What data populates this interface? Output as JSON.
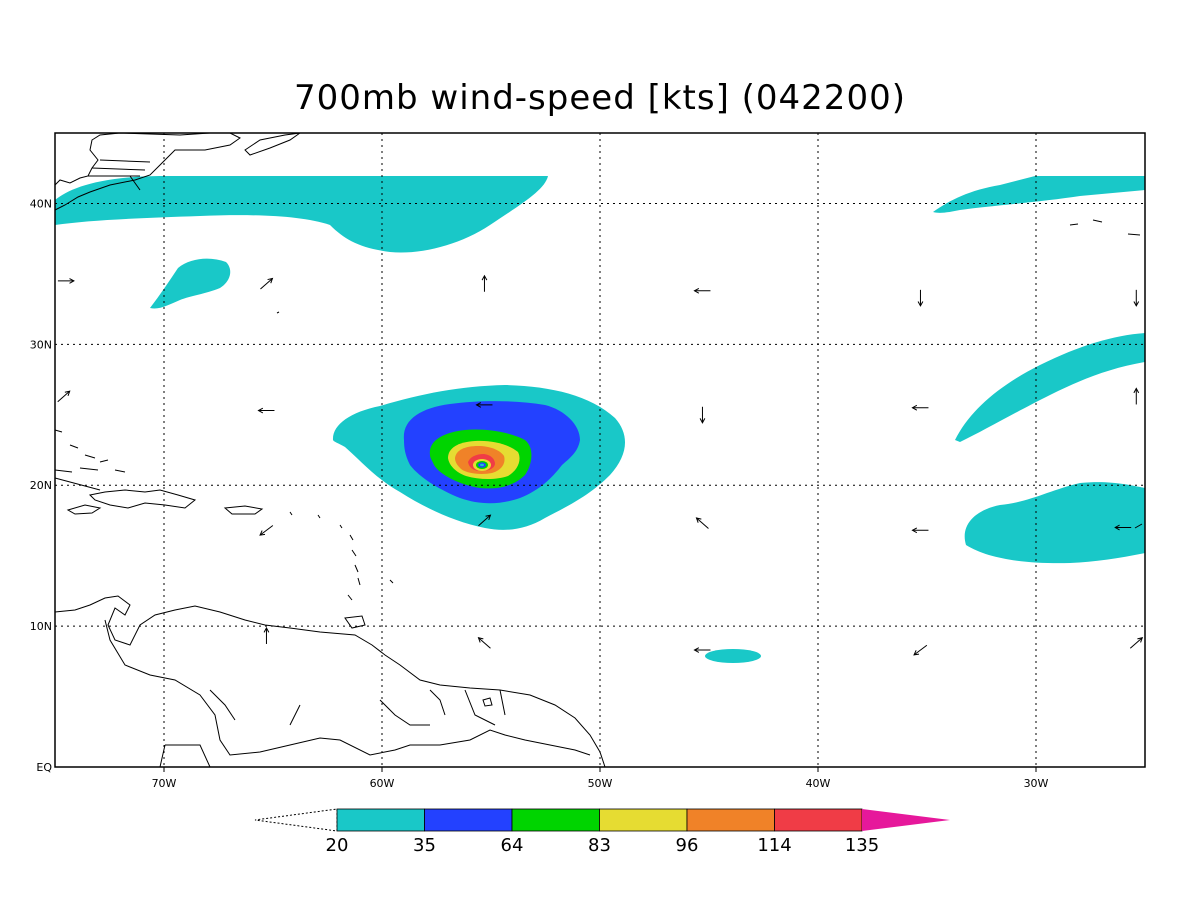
{
  "title": "700mb wind-speed [kts] (042200)",
  "map": {
    "lon_range": [
      -75,
      -25
    ],
    "lat_range": [
      0,
      45
    ],
    "lon_ticks": [
      {
        "value": -70,
        "label": "70W"
      },
      {
        "value": -60,
        "label": "60W"
      },
      {
        "value": -50,
        "label": "50W"
      },
      {
        "value": -40,
        "label": "40W"
      },
      {
        "value": -30,
        "label": "30W"
      }
    ],
    "lat_ticks": [
      {
        "value": 0,
        "label": "EQ"
      },
      {
        "value": 10,
        "label": "10N"
      },
      {
        "value": 20,
        "label": "20N"
      },
      {
        "value": 30,
        "label": "30N"
      },
      {
        "value": 40,
        "label": "40N"
      }
    ],
    "gridlines": "dotted"
  },
  "colorbar": {
    "levels": [
      "20",
      "35",
      "64",
      "83",
      "96",
      "114",
      "135"
    ],
    "colors": [
      "#19c8c8",
      "#2341ff",
      "#00d400",
      "#e6dc32",
      "#f08228",
      "#f03c46",
      "#e6189b"
    ],
    "below_color": "#ffffff"
  },
  "colors": {
    "cyan": "#19c8c8",
    "blue": "#2341ff",
    "green": "#00d400",
    "yellow": "#e6dc32",
    "orange": "#f08228",
    "red": "#f03c46"
  },
  "storm_center": {
    "lon": -55.5,
    "lat": 21.5
  },
  "wind_vectors": [
    {
      "lon": -74.5,
      "lat": 34.5,
      "dir": "east"
    },
    {
      "lon": -65.3,
      "lat": 34.3,
      "dir": "northeast"
    },
    {
      "lon": -55.3,
      "lat": 34.3,
      "dir": "north"
    },
    {
      "lon": -45.3,
      "lat": 33.8,
      "dir": "west"
    },
    {
      "lon": -35.3,
      "lat": 33.3,
      "dir": "south"
    },
    {
      "lon": -25.4,
      "lat": 33.3,
      "dir": "south"
    },
    {
      "lon": -74.6,
      "lat": 26.3,
      "dir": "northeast"
    },
    {
      "lon": -65.3,
      "lat": 25.3,
      "dir": "west"
    },
    {
      "lon": -55.3,
      "lat": 25.7,
      "dir": "west"
    },
    {
      "lon": -45.3,
      "lat": 25.0,
      "dir": "south"
    },
    {
      "lon": -35.3,
      "lat": 25.5,
      "dir": "west"
    },
    {
      "lon": -25.4,
      "lat": 26.3,
      "dir": "north"
    },
    {
      "lon": -65.3,
      "lat": 16.8,
      "dir": "southwest"
    },
    {
      "lon": -55.3,
      "lat": 17.5,
      "dir": "northeast"
    },
    {
      "lon": -45.3,
      "lat": 17.3,
      "dir": "northwest"
    },
    {
      "lon": -35.3,
      "lat": 16.8,
      "dir": "west"
    },
    {
      "lon": -26.0,
      "lat": 17.0,
      "dir": "west"
    },
    {
      "lon": -65.3,
      "lat": 9.3,
      "dir": "north"
    },
    {
      "lon": -55.3,
      "lat": 8.8,
      "dir": "northwest"
    },
    {
      "lon": -45.3,
      "lat": 8.3,
      "dir": "west"
    },
    {
      "lon": -35.3,
      "lat": 8.3,
      "dir": "southwest"
    },
    {
      "lon": -25.4,
      "lat": 8.8,
      "dir": "northeast"
    }
  ]
}
